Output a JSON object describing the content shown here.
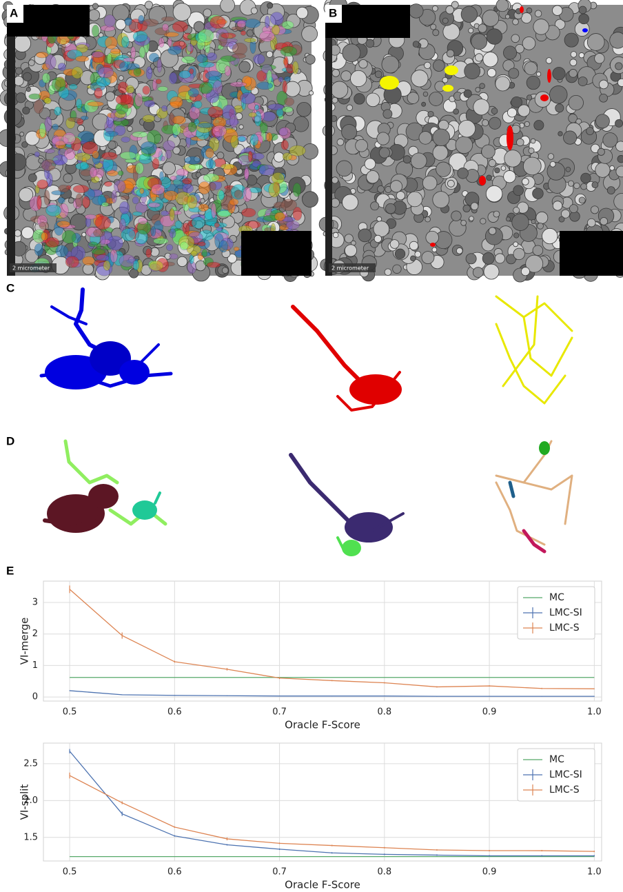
{
  "panels": {
    "a": {
      "label": "A",
      "scale_bar": "2 micrometer"
    },
    "b": {
      "label": "B",
      "scale_bar": "2 micrometer"
    },
    "c": {
      "label": "C"
    },
    "d": {
      "label": "D"
    },
    "e": {
      "label": "E"
    }
  },
  "chart_data": [
    {
      "type": "line",
      "y_label": "VI-merge",
      "x_label": "Oracle F-Score",
      "x": [
        0.5,
        0.55,
        0.6,
        0.65,
        0.7,
        0.75,
        0.8,
        0.85,
        0.9,
        0.95,
        1.0
      ],
      "series": [
        {
          "name": "MC",
          "color": "#55a868",
          "values": [
            0.62,
            0.62,
            0.62,
            0.62,
            0.62,
            0.62,
            0.62,
            0.62,
            0.62,
            0.62,
            0.62
          ]
        },
        {
          "name": "LMC-SI",
          "color": "#4c72b0",
          "values": [
            0.2,
            0.07,
            0.05,
            0.04,
            0.03,
            0.03,
            0.03,
            0.02,
            0.02,
            0.02,
            0.02
          ],
          "errors": [
            0.01,
            0.01,
            0.01,
            0.01,
            0.01,
            0.01,
            0.01,
            0.01,
            0.01,
            0.01,
            0.01
          ]
        },
        {
          "name": "LMC-S",
          "color": "#dd8452",
          "values": [
            3.42,
            1.95,
            1.12,
            0.88,
            0.6,
            0.52,
            0.45,
            0.32,
            0.35,
            0.27,
            0.26
          ],
          "errors": [
            0.12,
            0.1,
            0.03,
            0.04,
            0.03,
            0.02,
            0.02,
            0.02,
            0.02,
            0.02,
            0.01
          ]
        }
      ],
      "xlim": [
        0.475,
        1.007
      ],
      "ylim": [
        -0.13,
        3.68
      ],
      "xticks": [
        0.5,
        0.6,
        0.7,
        0.8,
        0.9,
        {
          "value": 1,
          "label": "1.0"
        }
      ],
      "yticks": [
        0,
        1,
        2,
        3
      ],
      "grid": true,
      "legend": "upper-right"
    },
    {
      "type": "line",
      "y_label": "VI-split",
      "x_label": "Oracle F-Score",
      "x": [
        0.5,
        0.55,
        0.6,
        0.65,
        0.7,
        0.75,
        0.8,
        0.85,
        0.9,
        0.95,
        1.0
      ],
      "series": [
        {
          "name": "MC",
          "color": "#55a868",
          "values": [
            1.24,
            1.24,
            1.24,
            1.24,
            1.24,
            1.24,
            1.24,
            1.24,
            1.24,
            1.24,
            1.24
          ]
        },
        {
          "name": "LMC-SI",
          "color": "#4c72b0",
          "values": [
            2.67,
            1.82,
            1.52,
            1.4,
            1.34,
            1.29,
            1.27,
            1.26,
            1.25,
            1.25,
            1.25
          ],
          "errors": [
            0.03,
            0.03,
            0.01,
            0.01,
            0.01,
            0.01,
            0.01,
            0.01,
            0.01,
            0.01,
            0.01
          ]
        },
        {
          "name": "LMC-S",
          "color": "#dd8452",
          "values": [
            2.34,
            1.97,
            1.64,
            1.48,
            1.42,
            1.39,
            1.36,
            1.33,
            1.32,
            1.32,
            1.31
          ],
          "errors": [
            0.04,
            0.02,
            0.01,
            0.02,
            0.01,
            0.01,
            0.01,
            0.01,
            0.01,
            0.01,
            0.01
          ]
        }
      ],
      "xlim": [
        0.475,
        1.007
      ],
      "ylim": [
        1.18,
        2.78
      ],
      "xticks": [
        0.5,
        0.6,
        0.7,
        0.8,
        0.9,
        {
          "value": 1,
          "label": "1.0"
        }
      ],
      "yticks": [
        1.5,
        {
          "value": 2,
          "label": "2.0"
        },
        2.5
      ],
      "grid": true,
      "legend": "upper-right"
    }
  ]
}
